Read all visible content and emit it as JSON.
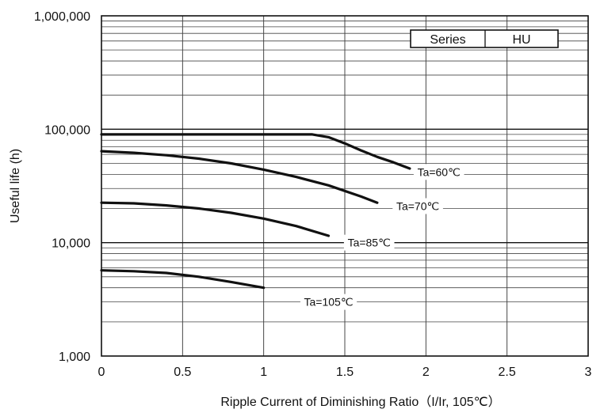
{
  "chart_data": {
    "type": "line",
    "xlabel": "Ripple Current of Diminishing Ratio（I/Ir, 105℃）",
    "ylabel": "Useful life (h)",
    "xlim": [
      0,
      3
    ],
    "ylim": [
      1000,
      1000000
    ],
    "y_scale": "log",
    "grid": true,
    "x_ticks": [
      {
        "value": 0,
        "label": "0"
      },
      {
        "value": 0.5,
        "label": "0.5"
      },
      {
        "value": 1,
        "label": "1"
      },
      {
        "value": 1.5,
        "label": "1.5"
      },
      {
        "value": 2,
        "label": "2"
      },
      {
        "value": 2.5,
        "label": "2.5"
      },
      {
        "value": 3,
        "label": "3"
      }
    ],
    "y_ticks": [
      {
        "value": 1000,
        "label": "1,000"
      },
      {
        "value": 10000,
        "label": "10,000"
      },
      {
        "value": 100000,
        "label": "100,000"
      },
      {
        "value": 1000000,
        "label": "1,000,000"
      }
    ],
    "legend": {
      "key": "Series",
      "value": "HU",
      "placement": "top-right"
    },
    "series": [
      {
        "name": "Ta=60℃",
        "label_at": {
          "x": 2.08,
          "y": 42000
        },
        "points": [
          {
            "x": 0,
            "y": 90000
          },
          {
            "x": 1.3,
            "y": 90000
          },
          {
            "x": 1.4,
            "y": 85000
          },
          {
            "x": 1.5,
            "y": 75000
          },
          {
            "x": 1.6,
            "y": 65000
          },
          {
            "x": 1.7,
            "y": 57000
          },
          {
            "x": 1.8,
            "y": 51000
          },
          {
            "x": 1.9,
            "y": 45000
          }
        ]
      },
      {
        "name": "Ta=70℃",
        "label_at": {
          "x": 1.95,
          "y": 21000
        },
        "points": [
          {
            "x": 0,
            "y": 64000
          },
          {
            "x": 0.2,
            "y": 62000
          },
          {
            "x": 0.4,
            "y": 59000
          },
          {
            "x": 0.6,
            "y": 55000
          },
          {
            "x": 0.8,
            "y": 50000
          },
          {
            "x": 1.0,
            "y": 44000
          },
          {
            "x": 1.2,
            "y": 38000
          },
          {
            "x": 1.4,
            "y": 32000
          },
          {
            "x": 1.6,
            "y": 25500
          },
          {
            "x": 1.7,
            "y": 22500
          }
        ]
      },
      {
        "name": "Ta=85℃",
        "label_at": {
          "x": 1.65,
          "y": 10000
        },
        "points": [
          {
            "x": 0,
            "y": 22500
          },
          {
            "x": 0.2,
            "y": 22200
          },
          {
            "x": 0.4,
            "y": 21300
          },
          {
            "x": 0.6,
            "y": 20000
          },
          {
            "x": 0.8,
            "y": 18300
          },
          {
            "x": 1.0,
            "y": 16300
          },
          {
            "x": 1.2,
            "y": 14000
          },
          {
            "x": 1.4,
            "y": 11500
          }
        ]
      },
      {
        "name": "Ta=105℃",
        "label_at": {
          "x": 1.4,
          "y": 3000
        },
        "points": [
          {
            "x": 0,
            "y": 5700
          },
          {
            "x": 0.2,
            "y": 5600
          },
          {
            "x": 0.4,
            "y": 5400
          },
          {
            "x": 0.6,
            "y": 5000
          },
          {
            "x": 0.8,
            "y": 4500
          },
          {
            "x": 1.0,
            "y": 4000
          }
        ]
      }
    ]
  }
}
